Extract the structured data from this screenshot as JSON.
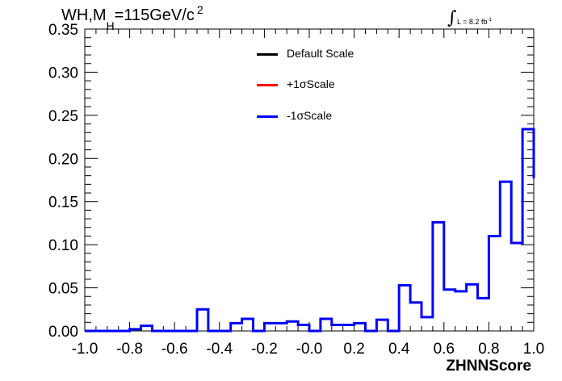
{
  "header": {
    "title_prefix": "WH,M",
    "title_sub": "H",
    "title_main": "=115GeV/c",
    "title_sup": "2",
    "lumi_text": "L = 8.2 fb",
    "lumi_sup": "-1"
  },
  "legend": {
    "items": [
      {
        "label": "Default Scale",
        "color": "#000000"
      },
      {
        "label": "+1σScale",
        "color": "#ff0000"
      },
      {
        "label": "-1σScale",
        "color": "#0000ff"
      }
    ]
  },
  "chart_data": {
    "type": "line",
    "drawstyle": "histogram-step",
    "xlabel": "ZHNNScore",
    "ylabel": "",
    "xlim": [
      -1.0,
      1.0
    ],
    "ylim": [
      0,
      0.35
    ],
    "x_ticks": [
      "-1.0",
      "-0.8",
      "-0.6",
      "-0.4",
      "-0.2",
      "-0.0",
      "0.2",
      "0.4",
      "0.6",
      "0.8",
      "1.0"
    ],
    "y_ticks": [
      "0.00",
      "0.05",
      "0.10",
      "0.15",
      "0.20",
      "0.25",
      "0.30",
      "0.35"
    ],
    "bin_edges": [
      -1.0,
      -0.95,
      -0.9,
      -0.85,
      -0.8,
      -0.75,
      -0.7,
      -0.65,
      -0.6,
      -0.55,
      -0.5,
      -0.45,
      -0.4,
      -0.35,
      -0.3,
      -0.25,
      -0.2,
      -0.15,
      -0.1,
      -0.05,
      0.0,
      0.05,
      0.1,
      0.15,
      0.2,
      0.25,
      0.3,
      0.35,
      0.4,
      0.45,
      0.5,
      0.55,
      0.6,
      0.65,
      0.7,
      0.75,
      0.8,
      0.85,
      0.9,
      0.95,
      1.0
    ],
    "series": [
      {
        "name": "-1σScale",
        "color": "#0000ff",
        "values": [
          0.0,
          0.0,
          0.0,
          0.0,
          0.002,
          0.006,
          0.0,
          0.0,
          0.0,
          0.0,
          0.025,
          0.0,
          0.0,
          0.009,
          0.014,
          0.0,
          0.009,
          0.009,
          0.011,
          0.007,
          0.0,
          0.014,
          0.007,
          0.007,
          0.009,
          0.0,
          0.013,
          0.0,
          0.053,
          0.033,
          0.016,
          0.126,
          0.048,
          0.046,
          0.054,
          0.038,
          0.11,
          0.173,
          0.102,
          0.234,
          0.177
        ]
      }
    ]
  }
}
